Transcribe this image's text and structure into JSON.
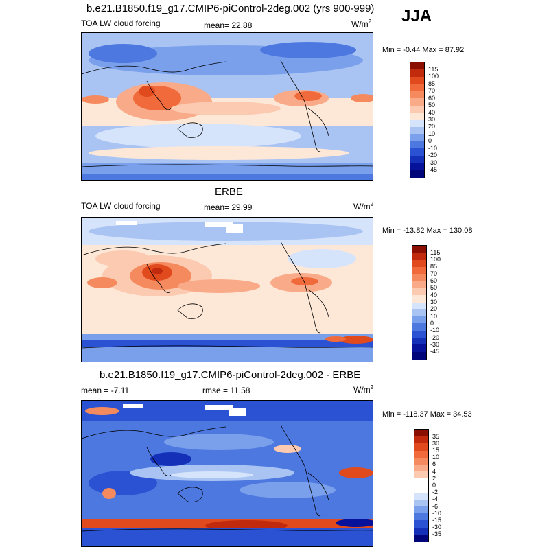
{
  "season": "JJA",
  "panels": [
    {
      "title": "b.e21.B1850.f19_g17.CMIP6-piControl-2deg.002 (yrs 900-999)",
      "left_label": "TOA LW cloud forcing",
      "mid_label": "mean=  22.88",
      "units": "W/m",
      "units_sup": "2",
      "minmax": "Min =  -0.44 Max =  87.92",
      "colorbar": {
        "labels": [
          "115",
          "100",
          "85",
          "70",
          "60",
          "50",
          "40",
          "30",
          "20",
          "10",
          "0",
          "-10",
          "-20",
          "-30",
          "-45"
        ],
        "colors": [
          "#8a0f00",
          "#c22a0e",
          "#e04a1c",
          "#f06a3c",
          "#f58a5e",
          "#f9aa88",
          "#fbcab0",
          "#fde8d8",
          "#d6e4fb",
          "#a9c3f3",
          "#7aa0ec",
          "#4d78e0",
          "#2a52d2",
          "#1530b8",
          "#07129a",
          "#00067a"
        ]
      }
    },
    {
      "title": "ERBE",
      "left_label": "TOA LW cloud forcing",
      "mid_label": "mean=  29.99",
      "units": "W/m",
      "units_sup": "2",
      "minmax": "Min = -13.82 Max = 130.08",
      "colorbar": {
        "labels": [
          "115",
          "100",
          "85",
          "70",
          "60",
          "50",
          "40",
          "30",
          "20",
          "10",
          "0",
          "-10",
          "-20",
          "-30",
          "-45"
        ],
        "colors": [
          "#8a0f00",
          "#c22a0e",
          "#e04a1c",
          "#f06a3c",
          "#f58a5e",
          "#f9aa88",
          "#fbcab0",
          "#fde8d8",
          "#d6e4fb",
          "#a9c3f3",
          "#7aa0ec",
          "#4d78e0",
          "#2a52d2",
          "#1530b8",
          "#07129a",
          "#00067a"
        ]
      }
    },
    {
      "title": "b.e21.B1850.f19_g17.CMIP6-piControl-2deg.002 - ERBE",
      "left_label": "mean =  -7.11",
      "mid_label": "rmse =  11.58",
      "units": "W/m",
      "units_sup": "2",
      "minmax": "Min = -118.37 Max =  34.53",
      "colorbar": {
        "labels": [
          "35",
          "30",
          "15",
          "10",
          "6",
          "4",
          "2",
          "0",
          "-2",
          "-4",
          "-6",
          "-10",
          "-15",
          "-30",
          "-35"
        ],
        "colors": [
          "#8a0f00",
          "#c22a0e",
          "#e04a1c",
          "#f06a3c",
          "#f58a5e",
          "#f9aa88",
          "#fbcab0",
          "#ffffff",
          "#ffffff",
          "#d6e4fb",
          "#a9c3f3",
          "#7aa0ec",
          "#4d78e0",
          "#2a52d2",
          "#1530b8",
          "#00067a"
        ]
      }
    }
  ]
}
